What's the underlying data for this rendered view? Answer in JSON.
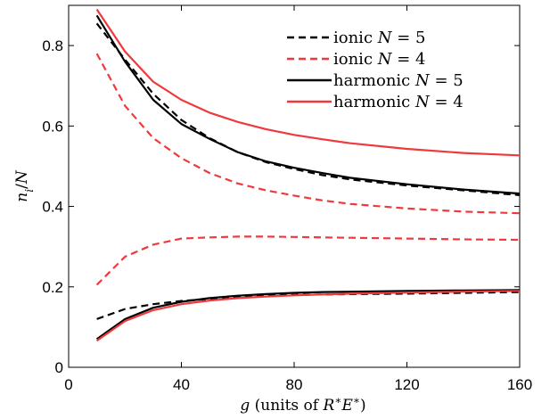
{
  "chart_data": {
    "type": "line",
    "xlabel": "g (units of R*E*)",
    "ylabel": "n_i/N",
    "xlim": [
      0,
      160
    ],
    "ylim": [
      0,
      0.9
    ],
    "x_ticks": [
      "0",
      "40",
      "80",
      "120",
      "160"
    ],
    "y_ticks": [
      "0",
      "0.2",
      "0.4",
      "0.6",
      "0.8"
    ],
    "x_tick_values": [
      0,
      40,
      80,
      120,
      160
    ],
    "y_tick_values": [
      0,
      0.2,
      0.4,
      0.6,
      0.8
    ],
    "grid": false,
    "legend_position": "top-right",
    "legend": [
      {
        "label": "ionic N = 5",
        "color": "#000000",
        "dash": true
      },
      {
        "label": "ionic N = 4",
        "color": "#f0393c",
        "dash": true
      },
      {
        "label": "harmonic N = 5",
        "color": "#000000",
        "dash": false
      },
      {
        "label": "harmonic N = 4",
        "color": "#f0393c",
        "dash": false
      }
    ],
    "series": [
      {
        "name": "ionic N = 5",
        "legend_index": 0,
        "color": "#000000",
        "dash": true,
        "x": [
          10,
          20,
          30,
          40,
          50,
          60,
          70,
          80,
          90,
          100,
          120,
          140,
          160
        ],
        "y": [
          0.855,
          0.765,
          0.68,
          0.615,
          0.57,
          0.535,
          0.51,
          0.493,
          0.478,
          0.467,
          0.452,
          0.44,
          0.428
        ]
      },
      {
        "name": "ionic N = 5",
        "legend_index": 0,
        "color": "#000000",
        "dash": true,
        "x": [
          10,
          20,
          30,
          40,
          50,
          60,
          70,
          80,
          90,
          100,
          120,
          140,
          160
        ],
        "y": [
          0.12,
          0.145,
          0.157,
          0.165,
          0.17,
          0.175,
          0.178,
          0.18,
          0.181,
          0.182,
          0.183,
          0.185,
          0.187
        ]
      },
      {
        "name": "ionic N = 4",
        "legend_index": 1,
        "color": "#f0393c",
        "dash": true,
        "x": [
          10,
          20,
          30,
          40,
          50,
          60,
          70,
          80,
          90,
          100,
          120,
          140,
          160
        ],
        "y": [
          0.78,
          0.65,
          0.57,
          0.52,
          0.483,
          0.457,
          0.44,
          0.427,
          0.415,
          0.406,
          0.395,
          0.387,
          0.383
        ]
      },
      {
        "name": "ionic N = 4",
        "legend_index": 1,
        "color": "#f0393c",
        "dash": true,
        "x": [
          10,
          20,
          30,
          40,
          50,
          60,
          70,
          80,
          90,
          100,
          120,
          140,
          160
        ],
        "y": [
          0.205,
          0.275,
          0.305,
          0.32,
          0.323,
          0.325,
          0.325,
          0.324,
          0.323,
          0.322,
          0.32,
          0.318,
          0.317
        ]
      },
      {
        "name": "harmonic N = 5",
        "legend_index": 2,
        "color": "#000000",
        "dash": false,
        "x": [
          10,
          20,
          30,
          40,
          50,
          60,
          70,
          80,
          90,
          100,
          120,
          140,
          160
        ],
        "y": [
          0.875,
          0.76,
          0.665,
          0.605,
          0.568,
          0.535,
          0.512,
          0.496,
          0.483,
          0.471,
          0.455,
          0.442,
          0.432
        ]
      },
      {
        "name": "harmonic N = 5",
        "legend_index": 2,
        "color": "#000000",
        "dash": false,
        "x": [
          10,
          20,
          30,
          40,
          50,
          60,
          70,
          80,
          90,
          100,
          120,
          140,
          160
        ],
        "y": [
          0.07,
          0.12,
          0.148,
          0.163,
          0.172,
          0.178,
          0.182,
          0.185,
          0.187,
          0.188,
          0.19,
          0.191,
          0.192
        ]
      },
      {
        "name": "harmonic N = 4",
        "legend_index": 3,
        "color": "#f0393c",
        "dash": false,
        "x": [
          10,
          20,
          30,
          40,
          50,
          60,
          70,
          80,
          90,
          100,
          120,
          140,
          160
        ],
        "y": [
          0.89,
          0.785,
          0.71,
          0.665,
          0.633,
          0.61,
          0.592,
          0.578,
          0.567,
          0.557,
          0.543,
          0.533,
          0.527
        ]
      },
      {
        "name": "harmonic N = 4",
        "legend_index": 3,
        "color": "#f0393c",
        "dash": false,
        "x": [
          10,
          20,
          30,
          40,
          50,
          60,
          70,
          80,
          90,
          100,
          120,
          140,
          160
        ],
        "y": [
          0.066,
          0.115,
          0.142,
          0.157,
          0.166,
          0.172,
          0.176,
          0.179,
          0.181,
          0.183,
          0.186,
          0.188,
          0.19
        ]
      }
    ]
  }
}
